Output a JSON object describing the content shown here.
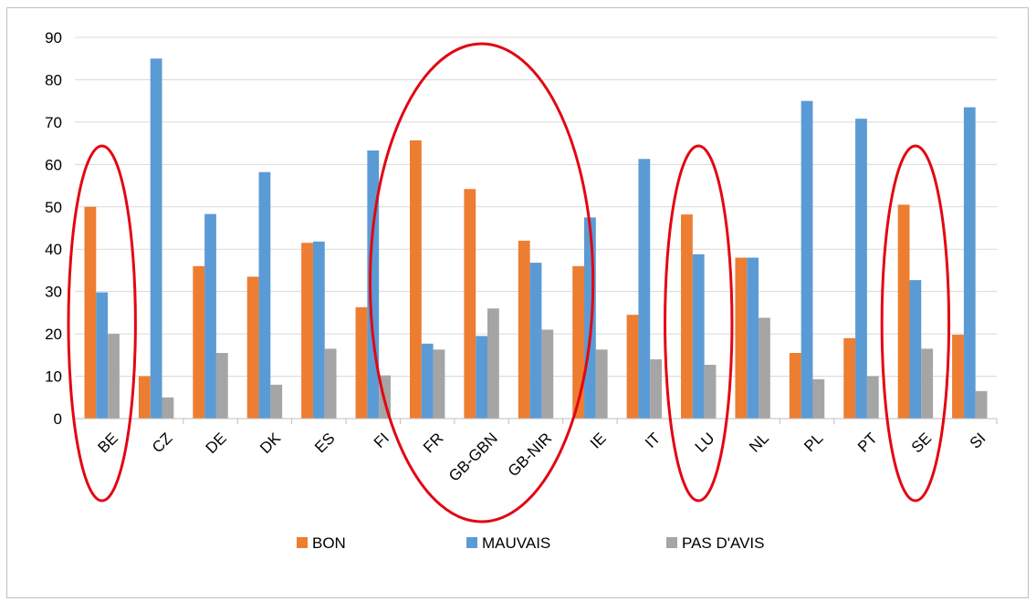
{
  "chart_data": {
    "type": "bar",
    "title": "",
    "xlabel": "",
    "ylabel": "",
    "ylim": [
      0,
      90
    ],
    "yticks": [
      "0",
      "10",
      "20",
      "30",
      "40",
      "50",
      "60",
      "70",
      "80",
      "90"
    ],
    "grid": true,
    "legend": "bottom",
    "categories": [
      "BE",
      "CZ",
      "DE",
      "DK",
      "ES",
      "FI",
      "FR",
      "GB-GBN",
      "GB-NIR",
      "IE",
      "IT",
      "LU",
      "NL",
      "PL",
      "PT",
      "SE",
      "SI"
    ],
    "series": [
      {
        "name": "BON",
        "color": "#ed7d31",
        "values": [
          50,
          10,
          36,
          33.5,
          41.5,
          26.3,
          65.7,
          54.2,
          42,
          36,
          24.5,
          48.2,
          38,
          15.5,
          19,
          50.5,
          19.8
        ]
      },
      {
        "name": "MAUVAIS",
        "color": "#5b9bd5",
        "values": [
          29.8,
          85,
          48.3,
          58.2,
          41.8,
          63.3,
          17.7,
          19.5,
          36.8,
          47.5,
          61.3,
          38.8,
          38,
          75,
          70.8,
          32.7,
          73.5
        ]
      },
      {
        "name": "PAS D'AVIS",
        "color": "#a5a5a5",
        "values": [
          20,
          5,
          15.5,
          8,
          16.5,
          10.2,
          16.3,
          26,
          21,
          16.3,
          14,
          12.7,
          23.8,
          9.3,
          10,
          16.5,
          6.5
        ]
      }
    ],
    "annotations": {
      "highlight_color": "#e30613",
      "highlighted_groups": [
        [
          "BE"
        ],
        [
          "FR",
          "GB-GBN",
          "GB-NIR"
        ],
        [
          "LU"
        ],
        [
          "SE"
        ]
      ]
    }
  }
}
